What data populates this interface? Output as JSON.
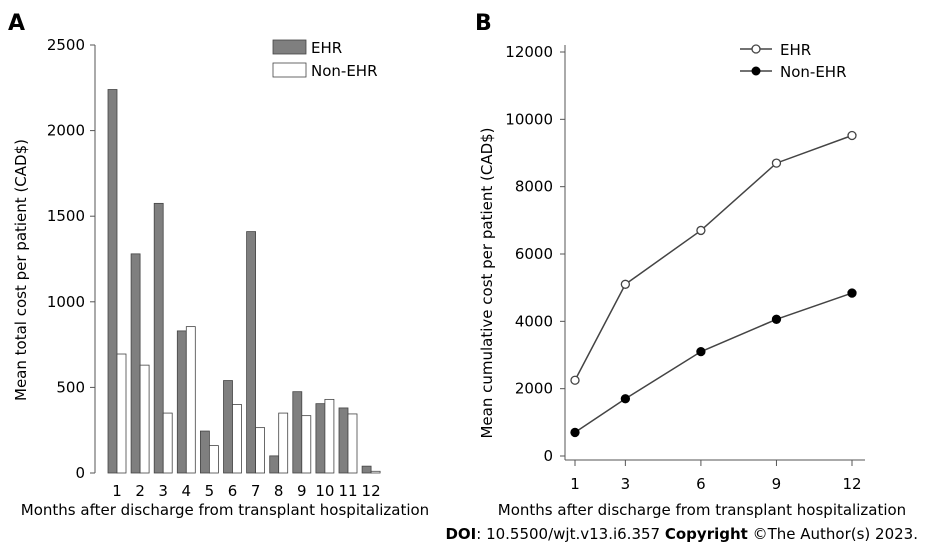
{
  "doi_label": "DOI",
  "doi_text": ": 10.5500/wjt.v13.i6.357 ",
  "copyright_label": "Copyright",
  "copyright_text": " ©The Author(s) 2023.",
  "chart_data": [
    {
      "panel": "A",
      "type": "bar",
      "categories": [
        "1",
        "2",
        "3",
        "4",
        "5",
        "6",
        "7",
        "8",
        "9",
        "10",
        "11",
        "12"
      ],
      "series": [
        {
          "name": "EHR",
          "color": "#7f7f7f",
          "values": [
            2240,
            1280,
            1575,
            830,
            245,
            540,
            1410,
            100,
            475,
            405,
            380,
            40
          ]
        },
        {
          "name": "Non-EHR",
          "color": "#ffffff",
          "values": [
            695,
            630,
            350,
            855,
            160,
            400,
            265,
            350,
            335,
            430,
            345,
            10
          ]
        }
      ],
      "xlabel": "Months after discharge from transplant hospitalization",
      "ylabel": "Mean total cost per patient (CAD$)",
      "ylim": [
        0,
        2500
      ],
      "yticks": [
        0,
        500,
        1000,
        1500,
        2000,
        2500
      ],
      "grid": false,
      "legend_position": "top-right"
    },
    {
      "panel": "B",
      "type": "line",
      "x": [
        1,
        3,
        6,
        9,
        12
      ],
      "xticks": [
        1,
        3,
        6,
        9,
        12
      ],
      "series": [
        {
          "name": "EHR",
          "marker": "open-circle",
          "values": [
            2250,
            5100,
            6700,
            8700,
            9520
          ]
        },
        {
          "name": "Non-EHR",
          "marker": "filled-circle",
          "values": [
            700,
            1700,
            3100,
            4060,
            4840
          ]
        }
      ],
      "xlabel": "Months after discharge from transplant hospitalization",
      "ylabel": "Mean cumulative cost per patient (CAD$)",
      "ylim": [
        0,
        12000
      ],
      "yticks": [
        0,
        2000,
        4000,
        6000,
        8000,
        10000,
        12000
      ],
      "grid": false,
      "legend_position": "top-right"
    }
  ]
}
